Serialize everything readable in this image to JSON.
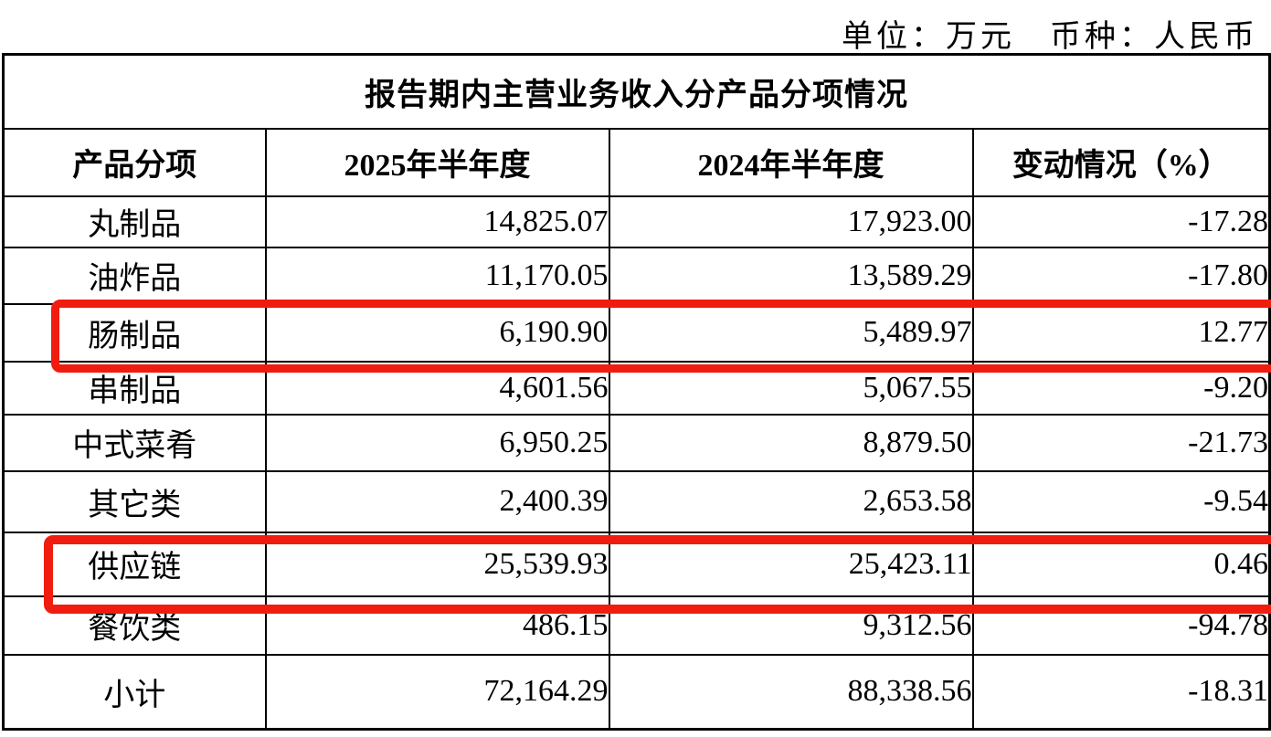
{
  "page": {
    "unit_note": "单位：万元　币种：人民币"
  },
  "table": {
    "title": "报告期内主营业务收入分产品分项情况",
    "columns": {
      "product": "产品分项",
      "h1_2025": "2025年半年度",
      "h1_2024": "2024年半年度",
      "change": "变动情况（%）"
    },
    "rows": [
      {
        "product": "丸制品",
        "h1_2025": "14,825.07",
        "h1_2024": "17,923.00",
        "change": "-17.28",
        "highlighted": false
      },
      {
        "product": "油炸品",
        "h1_2025": "11,170.05",
        "h1_2024": "13,589.29",
        "change": "-17.80",
        "highlighted": false
      },
      {
        "product": "肠制品",
        "h1_2025": "6,190.90",
        "h1_2024": "5,489.97",
        "change": "12.77",
        "highlighted": true
      },
      {
        "product": "串制品",
        "h1_2025": "4,601.56",
        "h1_2024": "5,067.55",
        "change": "-9.20",
        "highlighted": false
      },
      {
        "product": "中式菜肴",
        "h1_2025": "6,950.25",
        "h1_2024": "8,879.50",
        "change": "-21.73",
        "highlighted": false
      },
      {
        "product": "其它类",
        "h1_2025": "2,400.39",
        "h1_2024": "2,653.58",
        "change": "-9.54",
        "highlighted": false
      },
      {
        "product": "供应链",
        "h1_2025": "25,539.93",
        "h1_2024": "25,423.11",
        "change": "0.46",
        "highlighted": true
      },
      {
        "product": "餐饮类",
        "h1_2025": "486.15",
        "h1_2024": "9,312.56",
        "change": "-94.78",
        "highlighted": false
      },
      {
        "product": "小计",
        "h1_2025": "72,164.29",
        "h1_2024": "88,338.56",
        "change": "-18.31",
        "highlighted": false
      }
    ],
    "highlight_color": "#f01c10"
  }
}
